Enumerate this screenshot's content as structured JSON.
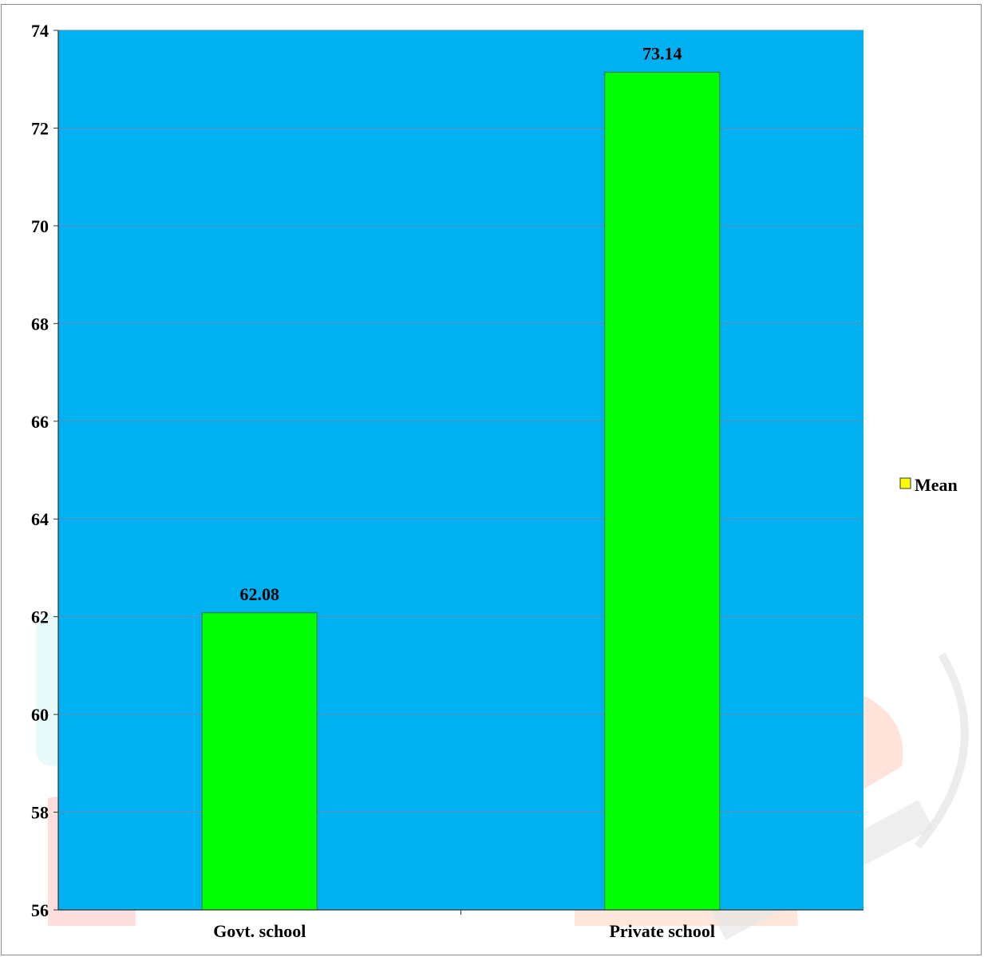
{
  "chart_data": {
    "type": "bar",
    "categories": [
      "Govt. school",
      "Private school"
    ],
    "series": [
      {
        "name": "Mean",
        "values": [
          62.08,
          73.14
        ],
        "data_labels": [
          "62.08",
          "73.14"
        ]
      }
    ],
    "ylim": [
      56,
      74
    ],
    "yticks": [
      56,
      58,
      60,
      62,
      64,
      66,
      68,
      70,
      72,
      74
    ],
    "grid": true,
    "legend": "right",
    "colors": {
      "plot_background": "#00b0f0",
      "bar_fill": "#00ff00",
      "bar_stroke": "#2e7d32",
      "legend_marker": "#ffff00",
      "gridline": "#5a8fb8"
    }
  }
}
